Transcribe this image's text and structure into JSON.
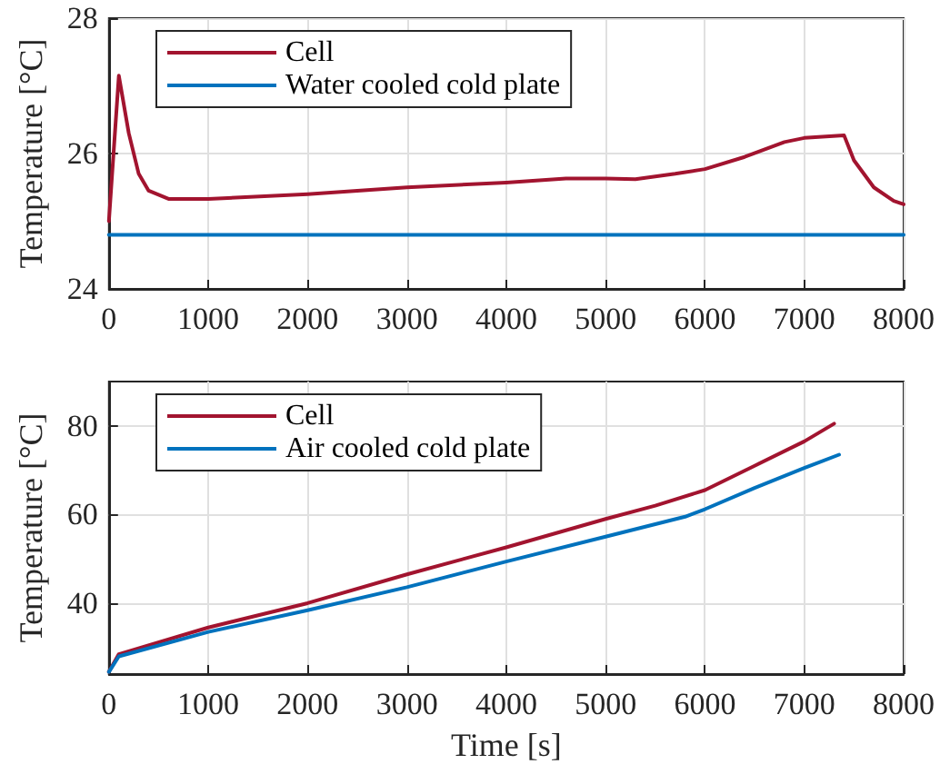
{
  "chart_data": [
    {
      "type": "line",
      "ylabel": "Temperature [°C]",
      "xlim": [
        0,
        8000
      ],
      "xticks": [
        0,
        1000,
        2000,
        3000,
        4000,
        5000,
        6000,
        7000,
        8000
      ],
      "ylim": [
        24,
        28
      ],
      "yticks": [
        24,
        26,
        28
      ],
      "grid": true,
      "legend": "top left",
      "series": [
        {
          "name": "Cell",
          "color": "#a2142f",
          "x": [
            0,
            100,
            200,
            300,
            400,
            600,
            1000,
            2000,
            3000,
            4000,
            4600,
            5000,
            5300,
            5700,
            6000,
            6400,
            6800,
            7000,
            7400,
            7500,
            7700,
            7900,
            8000
          ],
          "values": [
            25.0,
            27.15,
            26.3,
            25.7,
            25.45,
            25.33,
            25.33,
            25.4,
            25.5,
            25.57,
            25.63,
            25.63,
            25.62,
            25.7,
            25.77,
            25.95,
            26.17,
            26.23,
            26.27,
            25.9,
            25.5,
            25.3,
            25.25
          ]
        },
        {
          "name": "Water cooled cold plate",
          "color": "#0072bd",
          "x": [
            0,
            8000
          ],
          "values": [
            24.8,
            24.8
          ]
        }
      ]
    },
    {
      "type": "line",
      "xlabel": "Time [s]",
      "ylabel": "Temperature [°C]",
      "xlim": [
        0,
        8000
      ],
      "xticks": [
        0,
        1000,
        2000,
        3000,
        4000,
        5000,
        6000,
        7000,
        8000
      ],
      "ylim": [
        24,
        90
      ],
      "yticks": [
        40,
        60,
        80
      ],
      "grid": true,
      "legend": "top left",
      "series": [
        {
          "name": "Cell",
          "color": "#a2142f",
          "x": [
            0,
            100,
            1000,
            2000,
            3000,
            4000,
            5000,
            5500,
            6000,
            6500,
            7000,
            7300
          ],
          "values": [
            24.5,
            28.5,
            34.5,
            40,
            46.5,
            52.6,
            59,
            62,
            65.5,
            71,
            76.5,
            80.5
          ]
        },
        {
          "name": "Air cooled cold plate",
          "color": "#0072bd",
          "x": [
            0,
            100,
            1000,
            2000,
            3000,
            4000,
            5000,
            5800,
            6000,
            6500,
            7000,
            7350
          ],
          "values": [
            24.5,
            28,
            33.5,
            38.4,
            43.6,
            49.4,
            55,
            59.5,
            61.2,
            66,
            70.5,
            73.5
          ]
        }
      ]
    }
  ]
}
